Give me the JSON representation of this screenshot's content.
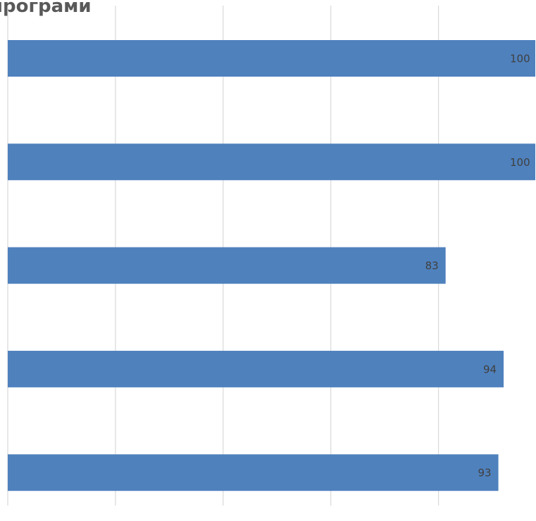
{
  "chart_data": {
    "type": "bar",
    "orientation": "horizontal",
    "title": "програми",
    "categories": [
      "",
      "",
      "",
      "",
      ""
    ],
    "values": [
      100,
      100,
      83,
      94,
      93
    ],
    "xlim": [
      0,
      100
    ],
    "grid": true,
    "bar_color": "#4f81bd",
    "grid_color": "#d9d9d9",
    "label_color": "#404040"
  }
}
